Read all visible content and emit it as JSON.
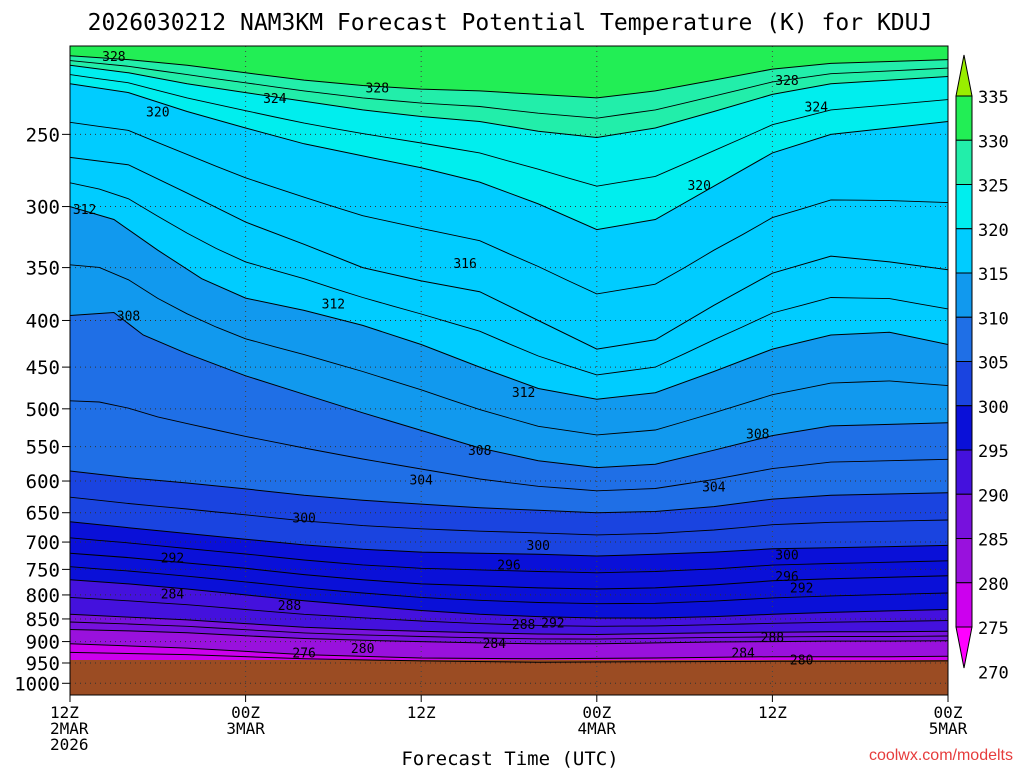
{
  "chart_data": {
    "type": "heatmap",
    "title": "2026030212 NAM3KM Forecast Potential Temperature (K) for KDUJ",
    "xlabel": "Forecast Time (UTC)",
    "ylabel": "",
    "x_ticks": [
      {
        "hour": 0,
        "line1": "12Z",
        "line2": "2MAR",
        "line3": "2026"
      },
      {
        "hour": 12,
        "line1": "00Z",
        "line2": "3MAR",
        "line3": ""
      },
      {
        "hour": 24,
        "line1": "12Z",
        "line2": "",
        "line3": ""
      },
      {
        "hour": 36,
        "line1": "00Z",
        "line2": "4MAR",
        "line3": ""
      },
      {
        "hour": 48,
        "line1": "12Z",
        "line2": "",
        "line3": ""
      },
      {
        "hour": 60,
        "line1": "00Z",
        "line2": "5MAR",
        "line3": ""
      }
    ],
    "xlim": [
      0,
      60
    ],
    "pressure_levels": [
      250,
      300,
      350,
      400,
      450,
      500,
      550,
      600,
      650,
      700,
      750,
      800,
      850,
      900,
      950,
      1000
    ],
    "ylim_hpa": [
      200,
      1030
    ],
    "ground_level_hpa": 962,
    "colorbar_ticks": [
      335,
      330,
      325,
      320,
      315,
      310,
      305,
      300,
      295,
      290,
      285,
      280,
      275,
      270
    ],
    "color_bands": [
      {
        "min": 330,
        "max": 335,
        "color": "#22ee55"
      },
      {
        "min": 325,
        "max": 330,
        "color": "#22eeaa"
      },
      {
        "min": 320,
        "max": 325,
        "color": "#00eeee"
      },
      {
        "min": 315,
        "max": 320,
        "color": "#00ccff"
      },
      {
        "min": 310,
        "max": 315,
        "color": "#1199ee"
      },
      {
        "min": 305,
        "max": 310,
        "color": "#1f6fe6"
      },
      {
        "min": 300,
        "max": 305,
        "color": "#1a44e0"
      },
      {
        "min": 295,
        "max": 300,
        "color": "#0a10d8"
      },
      {
        "min": 290,
        "max": 295,
        "color": "#4411dd"
      },
      {
        "min": 285,
        "max": 290,
        "color": "#7711dd"
      },
      {
        "min": 280,
        "max": 285,
        "color": "#9911dd"
      },
      {
        "min": 275,
        "max": 280,
        "color": "#cc00ee"
      },
      {
        "min": 270,
        "max": 275,
        "color": "#ff00ff"
      }
    ],
    "isentropes": [
      {
        "theta": 284,
        "points": [
          [
            0,
            873
          ],
          [
            4,
            876
          ],
          [
            8,
            880
          ],
          [
            12,
            887
          ],
          [
            16,
            893
          ],
          [
            20,
            897
          ],
          [
            24,
            900
          ],
          [
            28,
            903
          ],
          [
            32,
            905
          ],
          [
            36,
            905
          ],
          [
            40,
            903
          ],
          [
            44,
            901
          ],
          [
            48,
            900
          ],
          [
            52,
            899
          ],
          [
            56,
            899
          ],
          [
            60,
            898
          ]
        ]
      },
      {
        "theta": 288,
        "points": [
          [
            0,
            840
          ],
          [
            4,
            846
          ],
          [
            8,
            852
          ],
          [
            12,
            860
          ],
          [
            16,
            868
          ],
          [
            20,
            873
          ],
          [
            24,
            877
          ],
          [
            28,
            880
          ],
          [
            32,
            883
          ],
          [
            36,
            884
          ],
          [
            40,
            882
          ],
          [
            44,
            880
          ],
          [
            48,
            879
          ],
          [
            52,
            878
          ],
          [
            56,
            878
          ],
          [
            60,
            877
          ]
        ]
      },
      {
        "theta": 292,
        "points": [
          [
            0,
            770
          ],
          [
            4,
            778
          ],
          [
            8,
            788
          ],
          [
            12,
            800
          ],
          [
            16,
            812
          ],
          [
            20,
            822
          ],
          [
            24,
            832
          ],
          [
            28,
            840
          ],
          [
            32,
            845
          ],
          [
            36,
            848
          ],
          [
            40,
            848
          ],
          [
            44,
            845
          ],
          [
            48,
            840
          ],
          [
            52,
            836
          ],
          [
            56,
            833
          ],
          [
            60,
            830
          ]
        ]
      },
      {
        "theta": 296,
        "points": [
          [
            0,
            720
          ],
          [
            4,
            728
          ],
          [
            8,
            738
          ],
          [
            12,
            748
          ],
          [
            16,
            760
          ],
          [
            20,
            770
          ],
          [
            24,
            778
          ],
          [
            28,
            782
          ],
          [
            32,
            786
          ],
          [
            36,
            788
          ],
          [
            40,
            786
          ],
          [
            44,
            780
          ],
          [
            48,
            772
          ],
          [
            52,
            768
          ],
          [
            56,
            765
          ],
          [
            60,
            762
          ]
        ]
      },
      {
        "theta": 300,
        "points": [
          [
            0,
            665
          ],
          [
            4,
            675
          ],
          [
            8,
            685
          ],
          [
            12,
            695
          ],
          [
            16,
            705
          ],
          [
            20,
            713
          ],
          [
            24,
            718
          ],
          [
            28,
            720
          ],
          [
            32,
            722
          ],
          [
            36,
            725
          ],
          [
            40,
            722
          ],
          [
            44,
            718
          ],
          [
            48,
            712
          ],
          [
            52,
            710
          ],
          [
            56,
            708
          ],
          [
            60,
            706
          ]
        ]
      },
      {
        "theta": 304,
        "points": [
          [
            0,
            585
          ],
          [
            4,
            595
          ],
          [
            8,
            603
          ],
          [
            12,
            612
          ],
          [
            16,
            622
          ],
          [
            20,
            630
          ],
          [
            24,
            636
          ],
          [
            28,
            642
          ],
          [
            32,
            646
          ],
          [
            36,
            650
          ],
          [
            40,
            648
          ],
          [
            44,
            640
          ],
          [
            48,
            628
          ],
          [
            52,
            622
          ],
          [
            56,
            620
          ],
          [
            60,
            618
          ]
        ]
      },
      {
        "theta": 308,
        "points": [
          [
            0,
            395
          ],
          [
            3,
            392
          ],
          [
            5,
            415
          ],
          [
            8,
            435
          ],
          [
            12,
            460
          ],
          [
            16,
            482
          ],
          [
            20,
            505
          ],
          [
            24,
            528
          ],
          [
            28,
            552
          ],
          [
            32,
            570
          ],
          [
            36,
            580
          ],
          [
            40,
            575
          ],
          [
            44,
            555
          ],
          [
            48,
            535
          ],
          [
            52,
            522
          ],
          [
            56,
            520
          ],
          [
            60,
            518
          ]
        ]
      },
      {
        "theta": 312,
        "points": [
          [
            0,
            300
          ],
          [
            3,
            310
          ],
          [
            6,
            335
          ],
          [
            9,
            360
          ],
          [
            12,
            378
          ],
          [
            16,
            390
          ],
          [
            20,
            405
          ],
          [
            24,
            425
          ],
          [
            28,
            450
          ],
          [
            32,
            475
          ],
          [
            36,
            488
          ],
          [
            40,
            480
          ],
          [
            44,
            455
          ],
          [
            48,
            430
          ],
          [
            52,
            415
          ],
          [
            56,
            412
          ],
          [
            60,
            425
          ]
        ]
      },
      {
        "theta": 316,
        "points": [
          [
            0,
            265
          ],
          [
            4,
            270
          ],
          [
            8,
            290
          ],
          [
            12,
            312
          ],
          [
            16,
            330
          ],
          [
            20,
            350
          ],
          [
            24,
            362
          ],
          [
            28,
            372
          ],
          [
            32,
            400
          ],
          [
            36,
            430
          ],
          [
            40,
            420
          ],
          [
            44,
            385
          ],
          [
            48,
            355
          ],
          [
            52,
            340
          ],
          [
            56,
            345
          ],
          [
            60,
            352
          ]
        ]
      },
      {
        "theta": 320,
        "points": [
          [
            0,
            220
          ],
          [
            4,
            225
          ],
          [
            8,
            236
          ],
          [
            12,
            246
          ],
          [
            16,
            256
          ],
          [
            20,
            264
          ],
          [
            24,
            272
          ],
          [
            28,
            282
          ],
          [
            32,
            298
          ],
          [
            36,
            318
          ],
          [
            40,
            310
          ],
          [
            44,
            285
          ],
          [
            48,
            262
          ],
          [
            52,
            250
          ],
          [
            56,
            246
          ],
          [
            60,
            242
          ]
        ]
      },
      {
        "theta": 324,
        "points": [
          [
            0,
            210
          ],
          [
            4,
            214
          ],
          [
            8,
            220
          ],
          [
            12,
            225
          ],
          [
            16,
            230
          ],
          [
            20,
            235
          ],
          [
            24,
            239
          ],
          [
            28,
            242
          ],
          [
            32,
            248
          ],
          [
            36,
            252
          ],
          [
            40,
            246
          ],
          [
            44,
            236
          ],
          [
            48,
            226
          ],
          [
            52,
            220
          ],
          [
            56,
            218
          ],
          [
            60,
            216
          ]
        ]
      },
      {
        "theta": 328,
        "points": [
          [
            0,
            205
          ],
          [
            4,
            207
          ],
          [
            8,
            210
          ],
          [
            12,
            214
          ],
          [
            16,
            218
          ],
          [
            20,
            221
          ],
          [
            24,
            223
          ],
          [
            28,
            224
          ],
          [
            32,
            226
          ],
          [
            36,
            228
          ],
          [
            40,
            224
          ],
          [
            44,
            218
          ],
          [
            48,
            212
          ],
          [
            52,
            209
          ],
          [
            56,
            208
          ],
          [
            60,
            207
          ]
        ]
      }
    ],
    "contour_labels": [
      {
        "text": "328",
        "hour": 3,
        "hpa": 205
      },
      {
        "text": "328",
        "hour": 21,
        "hpa": 222
      },
      {
        "text": "328",
        "hour": 49,
        "hpa": 218
      },
      {
        "text": "324",
        "hour": 14,
        "hpa": 228
      },
      {
        "text": "324",
        "hour": 51,
        "hpa": 233
      },
      {
        "text": "320",
        "hour": 6,
        "hpa": 236
      },
      {
        "text": "320",
        "hour": 43,
        "hpa": 284
      },
      {
        "text": "312",
        "hour": 1,
        "hpa": 302
      },
      {
        "text": "316",
        "hour": 27,
        "hpa": 346
      },
      {
        "text": "308",
        "hour": 4,
        "hpa": 395
      },
      {
        "text": "312",
        "hour": 18,
        "hpa": 383
      },
      {
        "text": "312",
        "hour": 31,
        "hpa": 479
      },
      {
        "text": "308",
        "hour": 28,
        "hpa": 555
      },
      {
        "text": "308",
        "hour": 47,
        "hpa": 532
      },
      {
        "text": "304",
        "hour": 24,
        "hpa": 598
      },
      {
        "text": "304",
        "hour": 44,
        "hpa": 608
      },
      {
        "text": "300",
        "hour": 16,
        "hpa": 658
      },
      {
        "text": "300",
        "hour": 32,
        "hpa": 705
      },
      {
        "text": "300",
        "hour": 49,
        "hpa": 722
      },
      {
        "text": "296",
        "hour": 30,
        "hpa": 741
      },
      {
        "text": "296",
        "hour": 49,
        "hpa": 763
      },
      {
        "text": "292",
        "hour": 7,
        "hpa": 728
      },
      {
        "text": "292",
        "hour": 33,
        "hpa": 858
      },
      {
        "text": "292",
        "hour": 50,
        "hpa": 785
      },
      {
        "text": "288",
        "hour": 15,
        "hpa": 821
      },
      {
        "text": "288",
        "hour": 31,
        "hpa": 861
      },
      {
        "text": "288",
        "hour": 48,
        "hpa": 890
      },
      {
        "text": "284",
        "hour": 7,
        "hpa": 797
      },
      {
        "text": "284",
        "hour": 29,
        "hpa": 903
      },
      {
        "text": "284",
        "hour": 46,
        "hpa": 925
      },
      {
        "text": "280",
        "hour": 20,
        "hpa": 915
      },
      {
        "text": "280",
        "hour": 50,
        "hpa": 942
      },
      {
        "text": "276",
        "hour": 16,
        "hpa": 925
      }
    ]
  },
  "credit": "coolwx.com/modelts",
  "colors": {
    "ground": "#9b4c23",
    "credit": "#e63c3c"
  }
}
